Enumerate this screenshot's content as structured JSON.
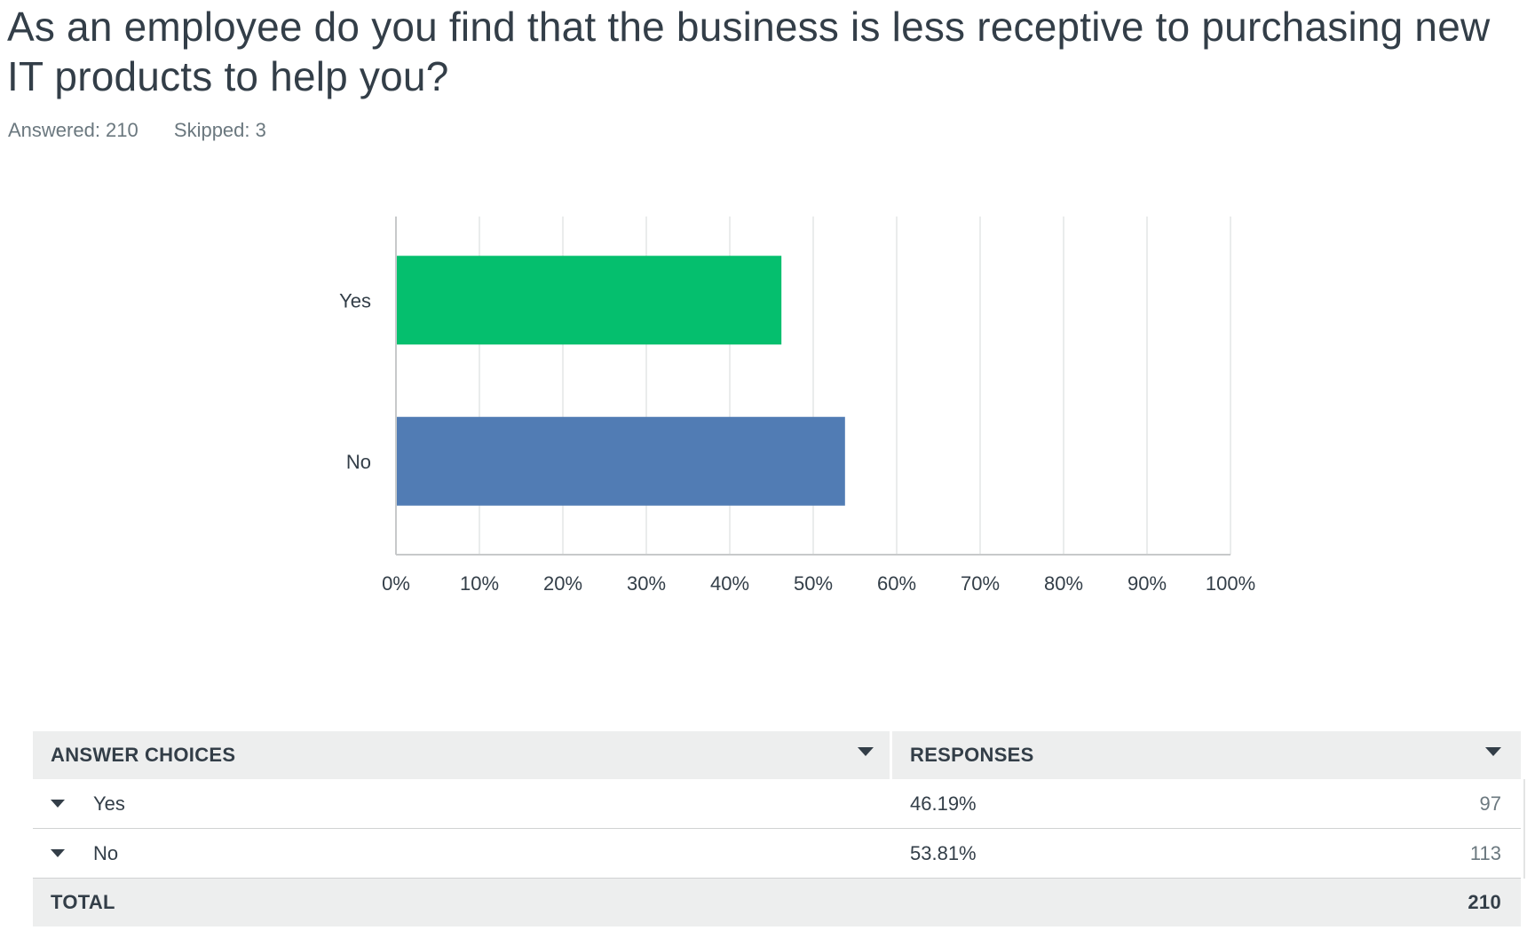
{
  "question": {
    "title": "As an employee do you find that the business is less receptive to purchasing new IT products to help you?",
    "answered_label": "Answered: 210",
    "skipped_label": "Skipped: 3"
  },
  "colors": {
    "yes": "#05bf6e",
    "no": "#517cb4",
    "grid": "#e4e5e5",
    "axis": "#c7c9ca",
    "text": "#333e48"
  },
  "chart_data": {
    "type": "bar",
    "orientation": "horizontal",
    "categories": [
      "Yes",
      "No"
    ],
    "values": [
      46.19,
      53.81
    ],
    "xlim": [
      0,
      100
    ],
    "xticks": [
      "0%",
      "10%",
      "20%",
      "30%",
      "40%",
      "50%",
      "60%",
      "70%",
      "80%",
      "90%",
      "100%"
    ],
    "grid": true,
    "title": "",
    "xlabel": "",
    "ylabel": ""
  },
  "table": {
    "header_choices": "ANSWER CHOICES",
    "header_responses": "RESPONSES",
    "rows": [
      {
        "choice": "Yes",
        "percent": "46.19%",
        "count": "97"
      },
      {
        "choice": "No",
        "percent": "53.81%",
        "count": "113"
      }
    ],
    "total_label": "TOTAL",
    "total_value": "210"
  }
}
